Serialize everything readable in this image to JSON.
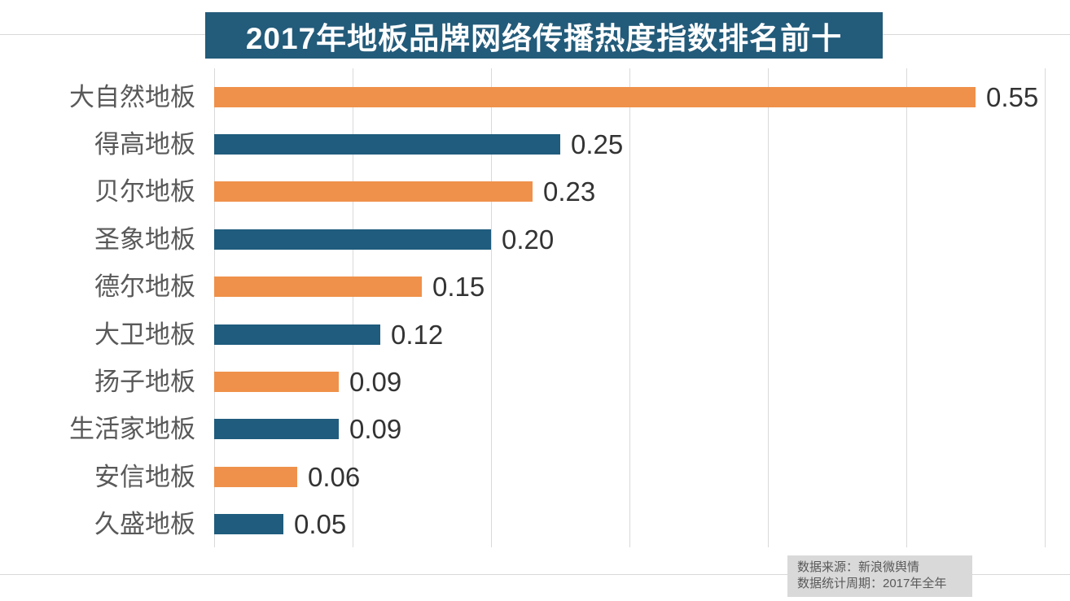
{
  "title_banner": {
    "text": "2017年地板品牌网络传播热度指数排名前十",
    "bg_color": "#235B7A",
    "text_color": "#FFFFFF"
  },
  "chart_data": {
    "type": "bar",
    "orientation": "horizontal",
    "title": "2017年地板品牌网络传播热度指数排名前十",
    "categories": [
      "大自然地板",
      "得高地板",
      "贝尔地板",
      "圣象地板",
      "德尔地板",
      "大卫地板",
      "扬子地板",
      "生活家地板",
      "安信地板",
      "久盛地板"
    ],
    "values": [
      0.55,
      0.25,
      0.23,
      0.2,
      0.15,
      0.12,
      0.09,
      0.09,
      0.06,
      0.05
    ],
    "value_labels": [
      "0.55",
      "0.25",
      "0.23",
      "0.20",
      "0.15",
      "0.12",
      "0.09",
      "0.09",
      "0.06",
      "0.05"
    ],
    "xlabel": "",
    "ylabel": "",
    "xlim": [
      0,
      0.6
    ],
    "gridline_step": 0.1,
    "grid_on": true,
    "legend_position": "none",
    "bar_colors_alternating": [
      "#EF914A",
      "#1F5C7D"
    ],
    "grid_color": "#D9D9D9",
    "category_label_color": "#595959",
    "value_label_color": "#333333"
  },
  "footer": {
    "source_line": "数据来源：新浪微舆情",
    "period_line": "数据统计周期：2017年全年",
    "bg_color": "#D9D9D9",
    "text_color": "#595959"
  }
}
